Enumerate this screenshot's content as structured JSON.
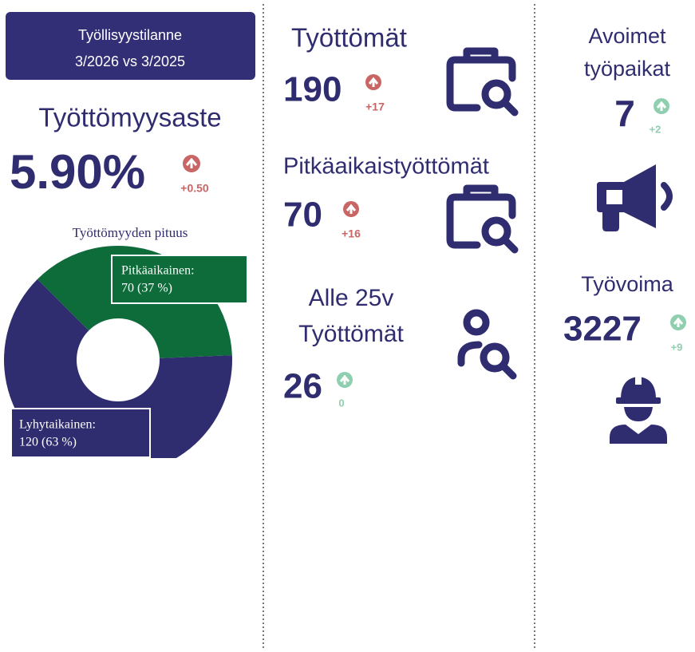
{
  "header": {
    "title": "Työllisyystilanne",
    "period": "3/2026 vs 3/2025"
  },
  "rate": {
    "label": "Työttömyysaste",
    "value": "5.90%",
    "change": "+0.50"
  },
  "unemployed": {
    "label": "Työttömät",
    "value": "190",
    "change": "+17"
  },
  "long_term": {
    "label": "Pitkäaikaistyöttömät",
    "value": "70",
    "change": "+16"
  },
  "youth": {
    "label_lines": [
      "Alle 25v",
      "Työttömät"
    ],
    "value": "26",
    "change": "0"
  },
  "vacancies": {
    "label_lines": [
      "Avoimet",
      "työpaikat"
    ],
    "value": "7",
    "change": "+2"
  },
  "labour_force": {
    "label": "Työvoima",
    "value": "3227",
    "change": "+9"
  },
  "chart_data": {
    "type": "donut",
    "title": "Työttömyyden pituus",
    "categories": [
      "Pitkäaikainen:",
      "Lyhytaikainen:"
    ],
    "values": [
      70,
      120
    ],
    "value_labels": [
      "70 (37 %)",
      "120 (63 %)"
    ],
    "colors": [
      "#0e6b3a",
      "#2f2d70"
    ]
  }
}
